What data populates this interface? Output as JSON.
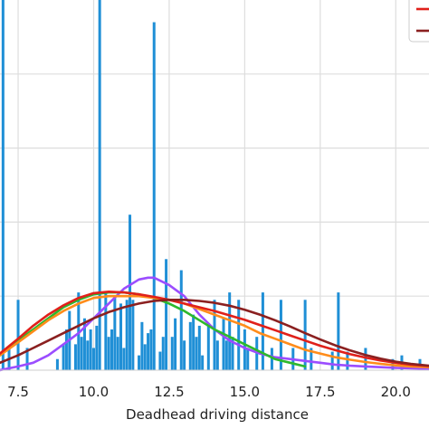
{
  "chart_data": {
    "type": "bar",
    "title": "",
    "xlabel": "Deadhead driving distance",
    "ylabel": "",
    "xlim": [
      6.9,
      21.1
    ],
    "ylim": [
      0,
      1
    ],
    "grid": true,
    "legend_placement": "top-right (partially visible)",
    "x_ticks": [
      7.5,
      10.0,
      12.5,
      15.0,
      17.5,
      20.0
    ],
    "x_tick_labels": [
      "7.5",
      "10.0",
      "12.5",
      "15.0",
      "17.5",
      "20.0"
    ],
    "histogram": {
      "color": "#1f8fd6",
      "bin_width": 0.1,
      "x": [
        7.0,
        7.2,
        7.5,
        7.8,
        8.8,
        9.0,
        9.1,
        9.2,
        9.4,
        9.5,
        9.6,
        9.7,
        9.8,
        9.9,
        10.0,
        10.1,
        10.2,
        10.4,
        10.5,
        10.6,
        10.7,
        10.8,
        10.9,
        11.0,
        11.1,
        11.2,
        11.3,
        11.5,
        11.6,
        11.7,
        11.8,
        11.9,
        12.0,
        12.2,
        12.3,
        12.4,
        12.6,
        12.7,
        12.9,
        13.0,
        13.2,
        13.3,
        13.4,
        13.5,
        13.6,
        13.8,
        14.0,
        14.1,
        14.3,
        14.4,
        14.5,
        14.6,
        14.8,
        15.0,
        15.1,
        15.4,
        15.6,
        15.9,
        16.2,
        16.6,
        17.0,
        17.2,
        17.9,
        18.1,
        18.4,
        19.0,
        19.9,
        20.2,
        20.8
      ],
      "values": [
        1.0,
        0.06,
        0.19,
        0.06,
        0.03,
        0.07,
        0.11,
        0.16,
        0.07,
        0.21,
        0.09,
        0.14,
        0.08,
        0.11,
        0.06,
        0.12,
        1.0,
        0.21,
        0.09,
        0.11,
        0.2,
        0.09,
        0.18,
        0.06,
        0.19,
        0.42,
        0.19,
        0.04,
        0.13,
        0.07,
        0.1,
        0.11,
        0.94,
        0.05,
        0.09,
        0.3,
        0.09,
        0.14,
        0.27,
        0.08,
        0.13,
        0.15,
        0.09,
        0.12,
        0.04,
        0.12,
        0.19,
        0.08,
        0.14,
        0.08,
        0.21,
        0.09,
        0.19,
        0.11,
        0.06,
        0.09,
        0.21,
        0.06,
        0.19,
        0.06,
        0.19,
        0.06,
        0.05,
        0.21,
        0.05,
        0.06,
        0.03,
        0.04,
        0.03
      ]
    },
    "series": [
      {
        "color": "#9b4dff",
        "x": [
          6.9,
          7.5,
          8.0,
          8.5,
          9.0,
          9.5,
          10.0,
          10.5,
          11.0,
          11.5,
          11.8,
          12.0,
          12.5,
          13.0,
          13.5,
          14.0,
          14.5,
          15.0,
          15.5,
          16.0,
          16.5,
          17.0,
          17.5,
          18.0,
          18.5,
          19.0,
          19.5,
          20.0,
          20.5,
          21.1
        ],
        "y": [
          0.0,
          0.01,
          0.02,
          0.04,
          0.07,
          0.1,
          0.14,
          0.18,
          0.22,
          0.245,
          0.25,
          0.25,
          0.23,
          0.2,
          0.15,
          0.11,
          0.08,
          0.06,
          0.045,
          0.035,
          0.03,
          0.025,
          0.02,
          0.015,
          0.012,
          0.01,
          0.008,
          0.006,
          0.005,
          0.004
        ]
      },
      {
        "color": "#2db82d",
        "x": [
          6.9,
          7.5,
          8.0,
          8.5,
          9.0,
          9.5,
          10.0,
          10.5,
          11.0,
          11.5,
          12.0,
          12.5,
          13.0,
          13.5,
          14.0,
          14.5,
          15.0,
          15.5,
          16.0,
          16.5,
          17.0
        ],
        "y": [
          0.04,
          0.08,
          0.11,
          0.14,
          0.17,
          0.19,
          0.205,
          0.21,
          0.21,
          0.205,
          0.195,
          0.18,
          0.16,
          0.135,
          0.11,
          0.09,
          0.07,
          0.05,
          0.03,
          0.02,
          0.01
        ]
      },
      {
        "color": "#ff8c1a",
        "x": [
          6.9,
          7.5,
          8.0,
          8.5,
          9.0,
          9.5,
          10.0,
          10.5,
          11.0,
          11.5,
          12.0,
          12.5,
          13.0,
          13.5,
          14.0,
          14.5,
          15.0,
          15.5,
          16.0,
          16.5,
          17.0,
          17.5,
          18.0,
          18.5,
          19.0,
          19.5,
          20.0,
          20.5,
          21.1
        ],
        "y": [
          0.04,
          0.075,
          0.105,
          0.135,
          0.16,
          0.18,
          0.195,
          0.2,
          0.2,
          0.2,
          0.195,
          0.19,
          0.18,
          0.165,
          0.15,
          0.135,
          0.12,
          0.1,
          0.085,
          0.07,
          0.055,
          0.045,
          0.035,
          0.028,
          0.022,
          0.017,
          0.013,
          0.01,
          0.008
        ]
      },
      {
        "color": "#e0201a",
        "x": [
          6.9,
          7.5,
          8.0,
          8.5,
          9.0,
          9.5,
          10.0,
          10.5,
          11.0,
          11.5,
          12.0,
          12.5,
          13.0,
          13.5,
          14.0,
          14.5,
          15.0,
          15.5,
          16.0,
          16.5,
          17.0,
          17.5,
          18.0,
          18.5,
          19.0,
          19.5,
          20.0,
          20.5,
          21.1
        ],
        "y": [
          0.045,
          0.085,
          0.12,
          0.15,
          0.175,
          0.195,
          0.208,
          0.212,
          0.21,
          0.205,
          0.198,
          0.19,
          0.18,
          0.17,
          0.16,
          0.148,
          0.136,
          0.122,
          0.108,
          0.094,
          0.08,
          0.066,
          0.054,
          0.043,
          0.034,
          0.026,
          0.02,
          0.015,
          0.011
        ]
      },
      {
        "color": "#8b2020",
        "x": [
          6.9,
          7.5,
          8.0,
          8.5,
          9.0,
          9.5,
          10.0,
          10.5,
          11.0,
          11.5,
          12.0,
          12.5,
          13.0,
          13.5,
          14.0,
          14.5,
          15.0,
          15.5,
          16.0,
          16.5,
          17.0,
          17.5,
          18.0,
          18.5,
          19.0,
          19.5,
          20.0,
          20.5,
          21.1
        ],
        "y": [
          0.02,
          0.04,
          0.06,
          0.08,
          0.1,
          0.12,
          0.14,
          0.157,
          0.17,
          0.18,
          0.187,
          0.19,
          0.19,
          0.187,
          0.182,
          0.174,
          0.163,
          0.15,
          0.135,
          0.118,
          0.1,
          0.083,
          0.067,
          0.053,
          0.041,
          0.031,
          0.023,
          0.017,
          0.012
        ]
      }
    ],
    "legend": {
      "entries": [
        {
          "color": "#e0201a"
        },
        {
          "color": "#8b2020"
        }
      ]
    }
  }
}
